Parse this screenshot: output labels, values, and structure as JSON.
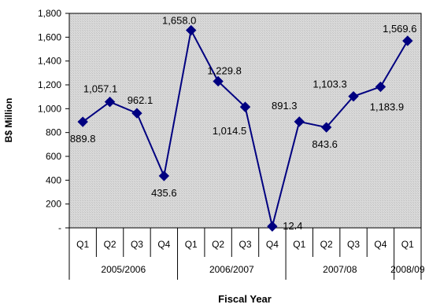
{
  "chart_data": {
    "type": "line",
    "xlabel": "Fiscal Year",
    "ylabel": "B$ Million",
    "ylim": [
      0,
      1800
    ],
    "yticks": [
      {
        "value": 0,
        "label": "-"
      },
      {
        "value": 200,
        "label": "200"
      },
      {
        "value": 400,
        "label": "400"
      },
      {
        "value": 600,
        "label": "600"
      },
      {
        "value": 800,
        "label": "800"
      },
      {
        "value": 1000,
        "label": "1,000"
      },
      {
        "value": 1200,
        "label": "1,200"
      },
      {
        "value": 1400,
        "label": "1,400"
      },
      {
        "value": 1600,
        "label": "1,600"
      },
      {
        "value": 1800,
        "label": "1,800"
      }
    ],
    "categories": [
      "Q1",
      "Q2",
      "Q3",
      "Q4",
      "Q1",
      "Q2",
      "Q3",
      "Q4",
      "Q1",
      "Q2",
      "Q3",
      "Q4",
      "Q1"
    ],
    "groups": [
      {
        "label": "2005/2006",
        "span": 4
      },
      {
        "label": "2006/2007",
        "span": 4
      },
      {
        "label": "2007/08",
        "span": 4
      },
      {
        "label": "2008/09",
        "span": 1
      }
    ],
    "series": [
      {
        "values": [
          889.8,
          1057.1,
          962.1,
          435.6,
          1658.0,
          1229.8,
          1014.5,
          12.4,
          891.3,
          843.6,
          1103.3,
          1183.9,
          1569.6
        ],
        "labels": [
          "889.8",
          "1,057.1",
          "962.1",
          "435.6",
          "1,658.0",
          "1,229.8",
          "1,014.5",
          "12.4",
          "891.3",
          "843.6",
          "1,103.3",
          "1,183.9",
          "1,569.6"
        ]
      }
    ],
    "grid": false,
    "legend": "none"
  },
  "colors": {
    "series": "#000080",
    "plot_background": "#d8d8d8",
    "hatch": "#bdbdbd",
    "axis": "#000000"
  }
}
